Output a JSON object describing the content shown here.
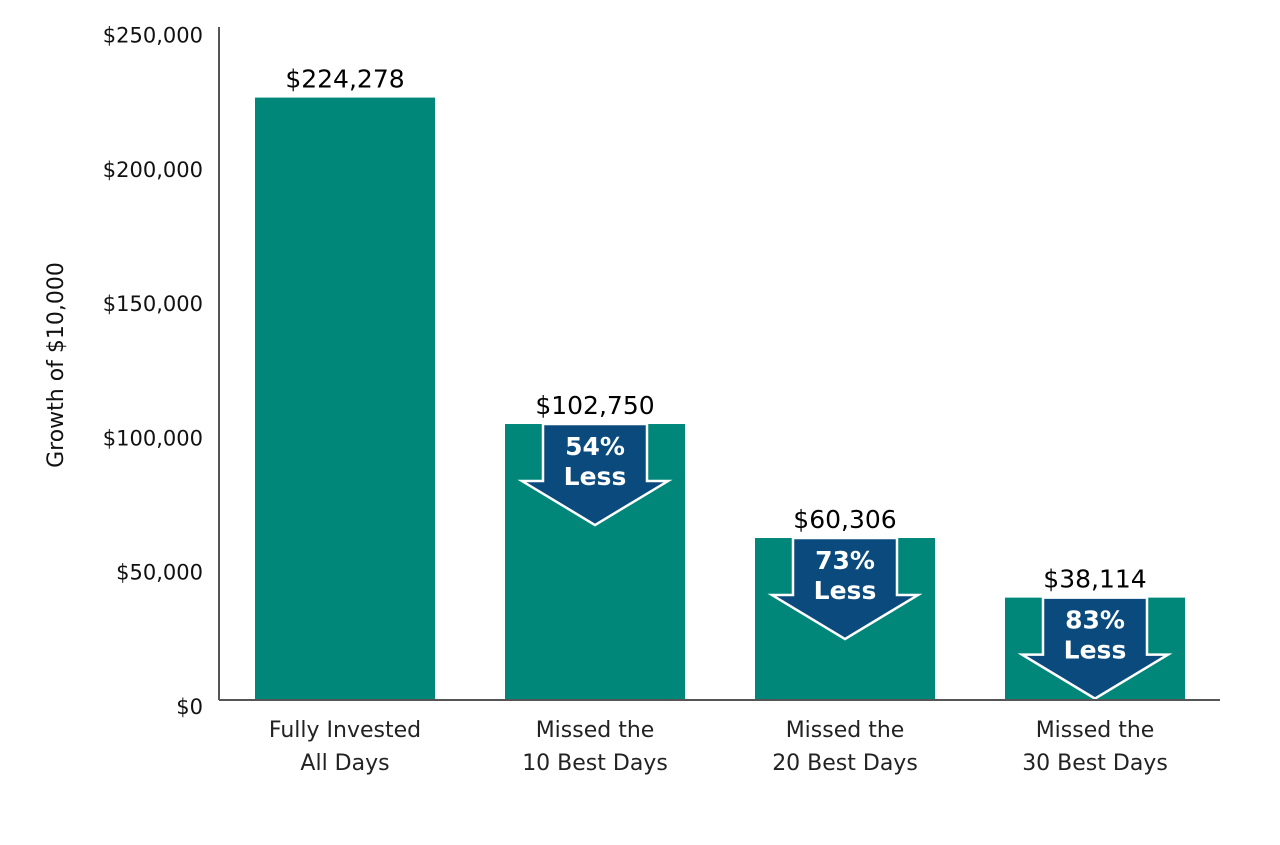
{
  "chart_data": {
    "type": "bar",
    "title": "",
    "xlabel": "",
    "ylabel": "Growth of $10,000",
    "ylim": [
      0,
      250000
    ],
    "yticks": [
      0,
      50000,
      100000,
      150000,
      200000,
      250000
    ],
    "ytick_labels": [
      "$0",
      "$50,000",
      "$100,000",
      "$150,000",
      "$200,000",
      "$250,000"
    ],
    "grid": false,
    "categories": [
      [
        "Fully Invested",
        "All Days"
      ],
      [
        "Missed the",
        "10 Best Days"
      ],
      [
        "Missed the",
        "20 Best Days"
      ],
      [
        "Missed the",
        "30 Best Days"
      ]
    ],
    "values": [
      224278,
      102750,
      60306,
      38114
    ],
    "data_labels": [
      "$224,278",
      "$102,750",
      "$60,306",
      "$38,114"
    ],
    "annotations": [
      null,
      [
        "54%",
        "Less"
      ],
      [
        "73%",
        "Less"
      ],
      [
        "83%",
        "Less"
      ]
    ],
    "colors": {
      "bar": "#00877A",
      "arrow": "#0B4A7D",
      "axis": "#555555"
    }
  }
}
